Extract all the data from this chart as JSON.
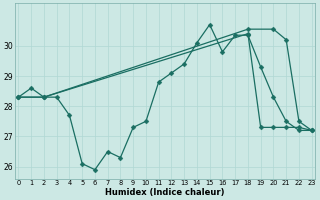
{
  "xlabel": "Humidex (Indice chaleur)",
  "bg_color": "#cce8e4",
  "line_color": "#1a6e62",
  "grid_color": "#b0d8d4",
  "ylim": [
    25.6,
    31.4
  ],
  "xlim": [
    -0.3,
    23.3
  ],
  "line1_x": [
    0,
    1,
    2,
    3,
    4,
    5,
    6,
    7,
    8,
    9,
    10,
    11,
    12,
    13,
    14,
    15,
    16,
    17,
    18,
    19,
    20,
    21,
    22,
    23
  ],
  "line1_y": [
    28.3,
    28.6,
    28.3,
    28.3,
    27.7,
    26.1,
    25.9,
    26.5,
    26.3,
    27.3,
    27.5,
    28.8,
    29.1,
    29.4,
    30.1,
    30.7,
    29.8,
    30.35,
    30.35,
    29.3,
    28.3,
    27.5,
    27.2,
    27.2
  ],
  "line1_markers": [
    0,
    1,
    2,
    3,
    4,
    5,
    6,
    7,
    8,
    9,
    10,
    11,
    12,
    13,
    14,
    15,
    16,
    17,
    18,
    19,
    20,
    21,
    22,
    23
  ],
  "line2_x": [
    0,
    2,
    18,
    19,
    20,
    21,
    22,
    23
  ],
  "line2_y": [
    28.3,
    28.3,
    30.4,
    27.3,
    27.3,
    27.3,
    27.3,
    27.2
  ],
  "line3_x": [
    0,
    2,
    18,
    20,
    21,
    22,
    23
  ],
  "line3_y": [
    28.3,
    28.3,
    30.55,
    30.55,
    30.2,
    27.5,
    27.2
  ],
  "yticks": [
    26,
    27,
    28,
    29,
    30
  ],
  "xticks": [
    0,
    1,
    2,
    3,
    4,
    5,
    6,
    7,
    8,
    9,
    10,
    11,
    12,
    13,
    14,
    15,
    16,
    17,
    18,
    19,
    20,
    21,
    22,
    23
  ]
}
